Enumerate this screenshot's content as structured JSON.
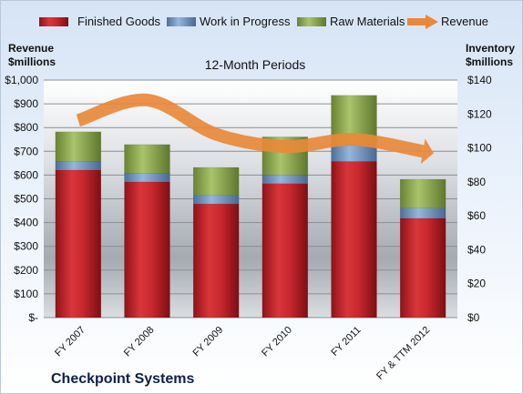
{
  "chart_data": {
    "type": "bar",
    "title": "12-Month Periods",
    "company": "Checkpoint Systems",
    "left_axis_label": [
      "Revenue",
      "$millions"
    ],
    "right_axis_label": [
      "Inventory",
      "$millions"
    ],
    "categories": [
      "FY 2007",
      "FY 2008",
      "FY 2009",
      "FY 2010",
      "FY 2011",
      "FY & TTM 2012"
    ],
    "left_ticks": [
      "$-",
      "$100",
      "$200",
      "$300",
      "$400",
      "$500",
      "$600",
      "$700",
      "$800",
      "$900",
      "$1,000"
    ],
    "right_ticks": [
      "$0",
      "$20",
      "$40",
      "$60",
      "$80",
      "$100",
      "$120",
      "$140"
    ],
    "ylim_left": [
      0,
      1000
    ],
    "ylim_right": [
      0,
      140
    ],
    "stacked": true,
    "series": [
      {
        "name": "Finished Goods",
        "color": "#c0252b",
        "axis": "right",
        "values": [
          87,
          80,
          67,
          79,
          92,
          58.5
        ]
      },
      {
        "name": "Work in Progress",
        "color": "#6c93c3",
        "axis": "right",
        "values": [
          5,
          5,
          5,
          5,
          10,
          6
        ]
      },
      {
        "name": "Raw Materials",
        "color": "#8eaa4f",
        "axis": "right",
        "values": [
          17.5,
          17,
          16.5,
          22.5,
          29,
          17
        ]
      },
      {
        "name": "Revenue",
        "color": "#e8893a",
        "axis": "left",
        "type": "line",
        "values": [
          830,
          916,
          772,
          720,
          750,
          700
        ]
      }
    ],
    "legend_position": "top",
    "grid": true
  }
}
